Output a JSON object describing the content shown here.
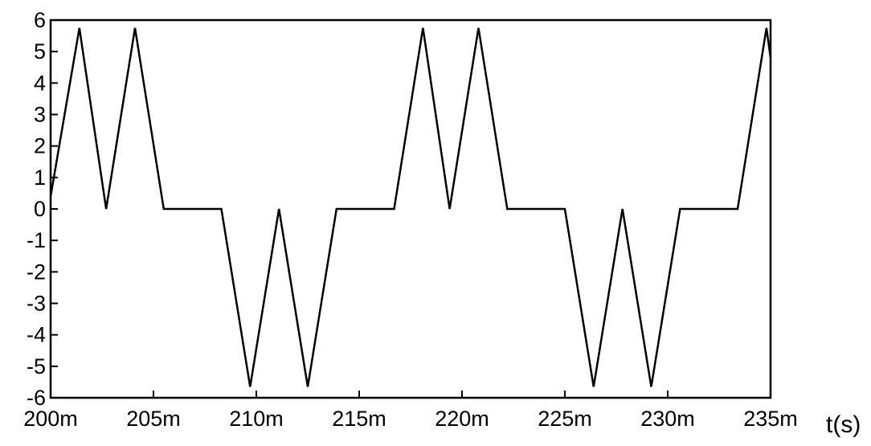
{
  "chart_data": {
    "type": "line",
    "xlabel": "t(s)",
    "ylabel": "",
    "xlim": [
      0.2,
      0.235
    ],
    "ylim": [
      -6,
      6
    ],
    "grid": false,
    "x_ticks": [
      {
        "value": 0.2,
        "label": "200m"
      },
      {
        "value": 0.205,
        "label": "205m"
      },
      {
        "value": 0.21,
        "label": "210m"
      },
      {
        "value": 0.215,
        "label": "215m"
      },
      {
        "value": 0.22,
        "label": "220m"
      },
      {
        "value": 0.225,
        "label": "225m"
      },
      {
        "value": 0.23,
        "label": "230m"
      },
      {
        "value": 0.235,
        "label": "235m"
      }
    ],
    "y_ticks": [
      {
        "value": 6,
        "label": "6"
      },
      {
        "value": 5,
        "label": "5"
      },
      {
        "value": 4,
        "label": "4"
      },
      {
        "value": 3,
        "label": "3"
      },
      {
        "value": 2,
        "label": "2"
      },
      {
        "value": 1,
        "label": "1"
      },
      {
        "value": 0,
        "label": "0"
      },
      {
        "value": -1,
        "label": "-1"
      },
      {
        "value": -2,
        "label": "-2"
      },
      {
        "value": -3,
        "label": "-3"
      },
      {
        "value": -4,
        "label": "-4"
      },
      {
        "value": -5,
        "label": "-5"
      },
      {
        "value": -6,
        "label": "-6"
      }
    ],
    "series": [
      {
        "color": "#000000",
        "points": [
          [
            0.2,
            0.4
          ],
          [
            0.2014,
            5.75
          ],
          [
            0.2027,
            0.0
          ],
          [
            0.2041,
            5.75
          ],
          [
            0.2055,
            0.0
          ],
          [
            0.2083,
            0.0
          ],
          [
            0.2097,
            -5.65
          ],
          [
            0.2111,
            0.0
          ],
          [
            0.2125,
            -5.65
          ],
          [
            0.2139,
            0.0
          ],
          [
            0.2167,
            0.0
          ],
          [
            0.2181,
            5.75
          ],
          [
            0.2194,
            0.0
          ],
          [
            0.2208,
            5.75
          ],
          [
            0.2222,
            0.0
          ],
          [
            0.225,
            0.0
          ],
          [
            0.2264,
            -5.65
          ],
          [
            0.2278,
            0.0
          ],
          [
            0.2292,
            -5.65
          ],
          [
            0.2306,
            0.0
          ],
          [
            0.2334,
            0.0
          ],
          [
            0.2348,
            5.75
          ],
          [
            0.235,
            4.8
          ]
        ]
      }
    ]
  }
}
